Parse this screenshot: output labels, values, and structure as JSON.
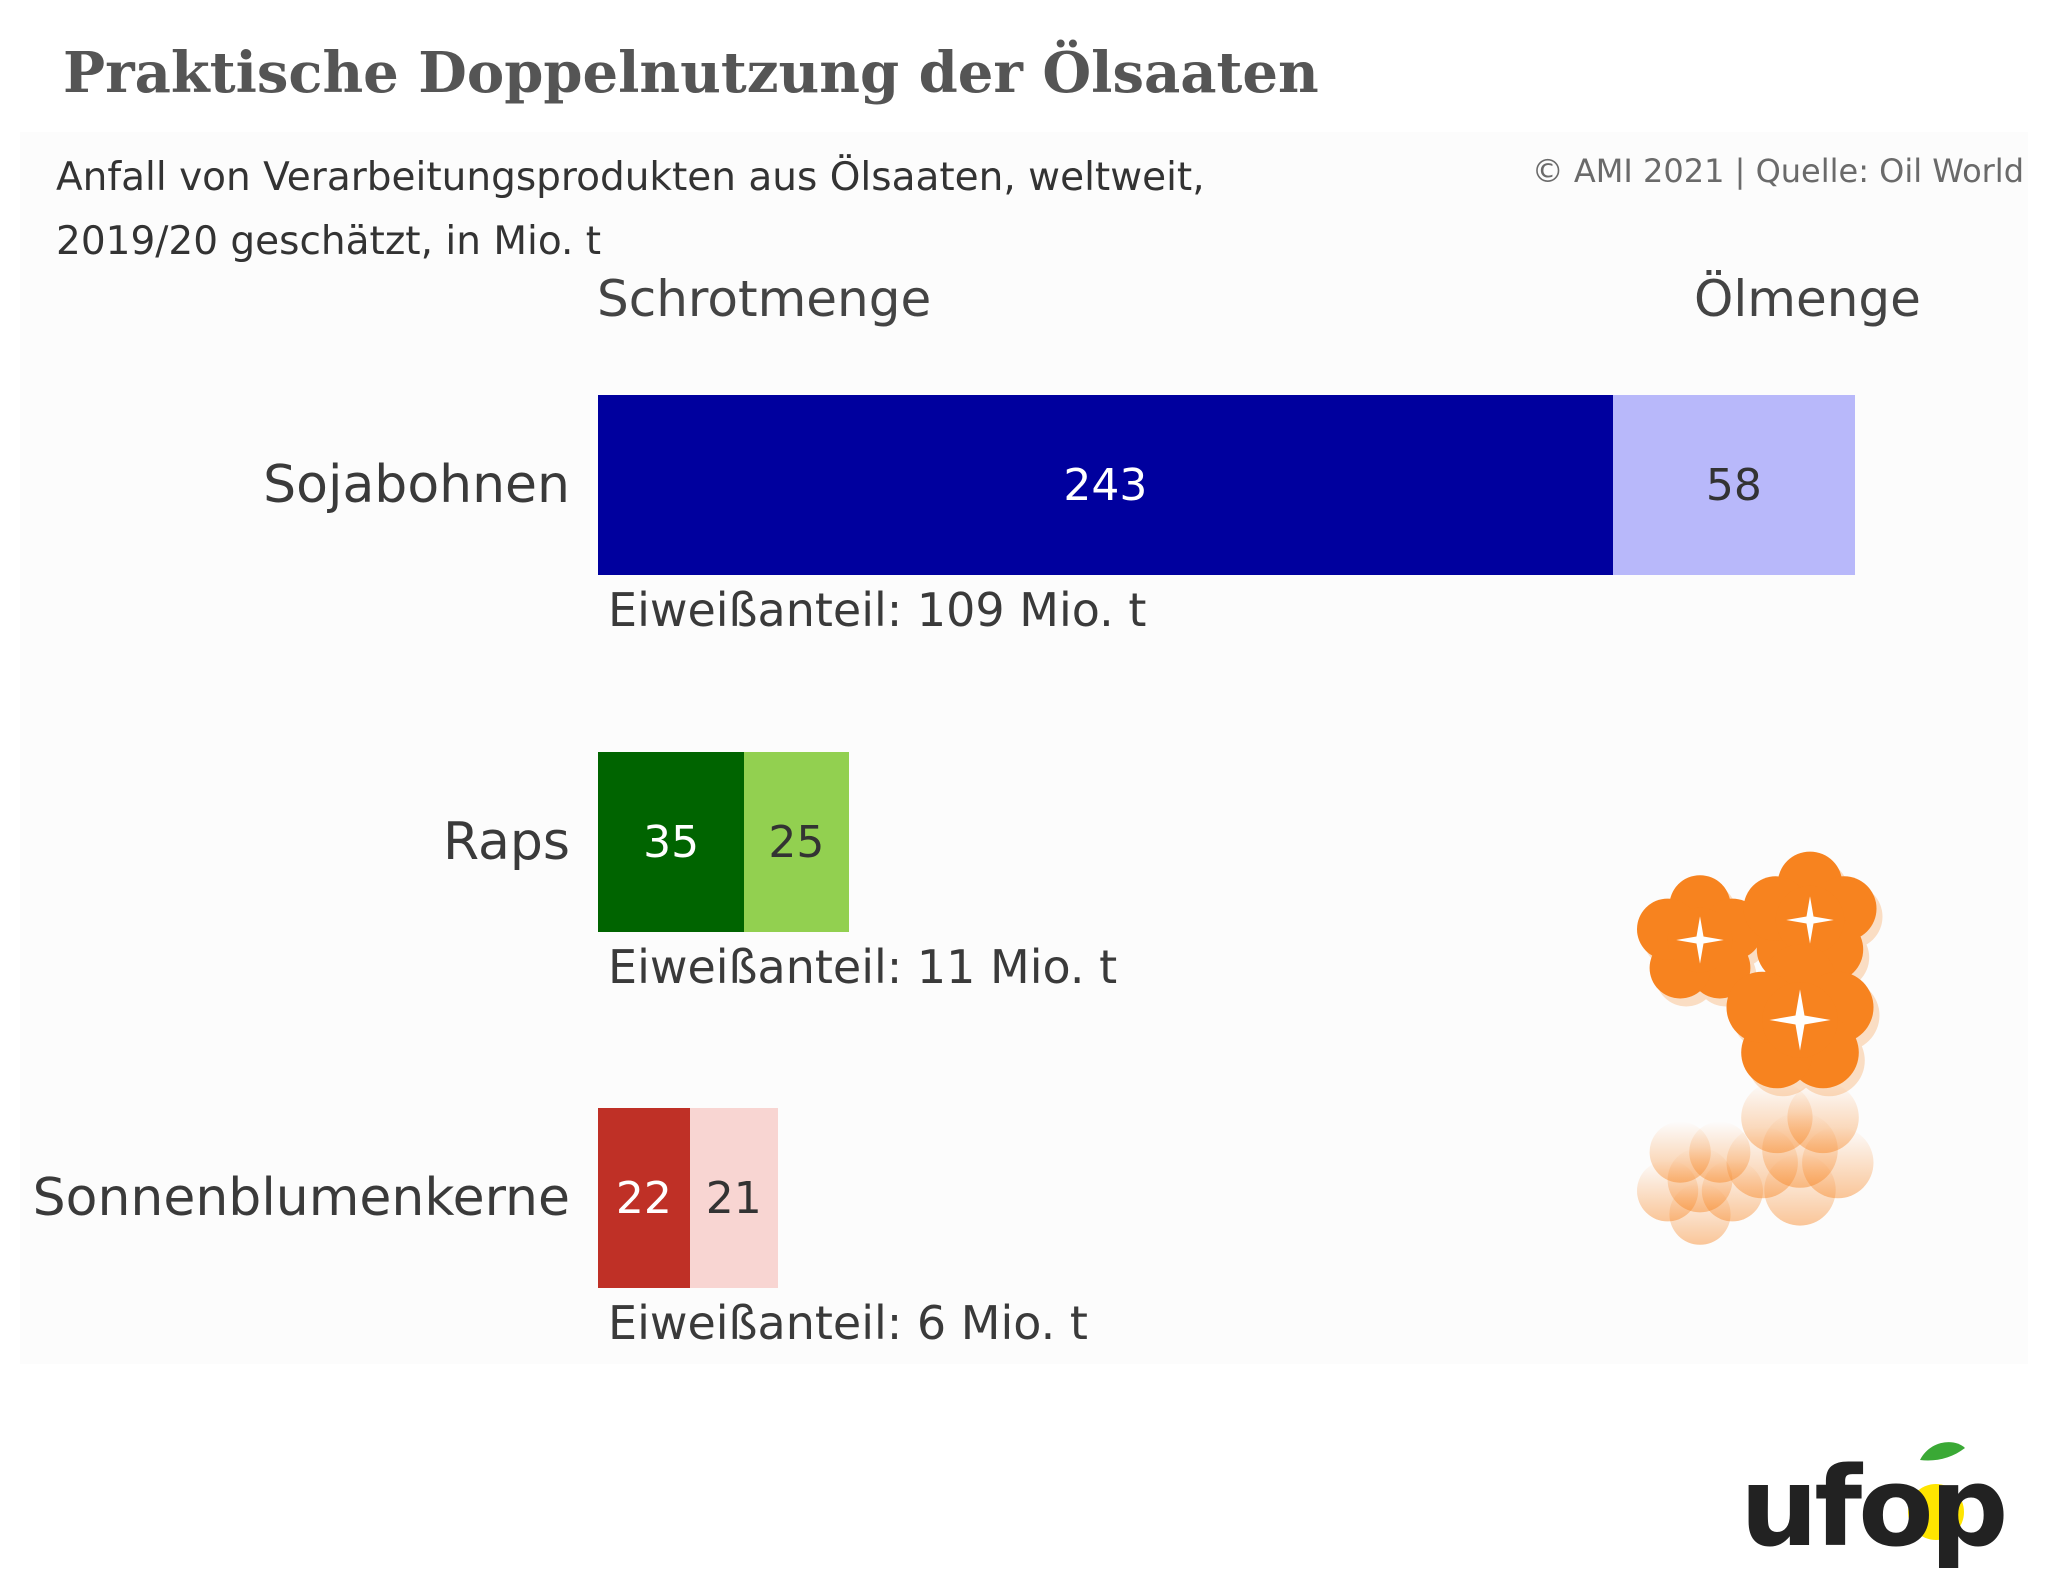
{
  "title": "Praktische Doppelnutzung der Ölsaaten",
  "subtitle": "Anfall von Verarbeitungsprodukten aus Ölsaaten, weltweit, 2019/20 geschätzt, in Mio. t",
  "source": "© AMI 2021 | Quelle: Oil World",
  "logo_text": "ufop",
  "chart_data": {
    "type": "bar",
    "orientation": "horizontal",
    "stacked": true,
    "column_headers": [
      "Schrotmenge",
      "Ölmenge"
    ],
    "categories": [
      "Sojabohnen",
      "Raps",
      "Sonnenblumenkerne"
    ],
    "series": [
      {
        "name": "Schrotmenge",
        "values": [
          243,
          35,
          22
        ]
      },
      {
        "name": "Ölmenge",
        "values": [
          58,
          25,
          21
        ]
      }
    ],
    "annotations": [
      "Eiweißanteil: 109 Mio. t",
      "Eiweißanteil: 11 Mio. t",
      "Eiweißanteil: 6 Mio. t"
    ],
    "colors": {
      "Sojabohnen": [
        "#00009e",
        "#b8b8fa"
      ],
      "Raps": [
        "#006400",
        "#92d050"
      ],
      "Sonnenblumenkerne": [
        "#bf3026",
        "#f8d5d2"
      ]
    },
    "label_colors": {
      "Sojabohnen": [
        "#ffffff",
        "#333333"
      ],
      "Raps": [
        "#ffffff",
        "#333333"
      ],
      "Sonnenblumenkerne": [
        "#ffffff",
        "#333333"
      ]
    },
    "xlim": [
      0,
      301
    ],
    "grid": false,
    "legend": "none"
  }
}
